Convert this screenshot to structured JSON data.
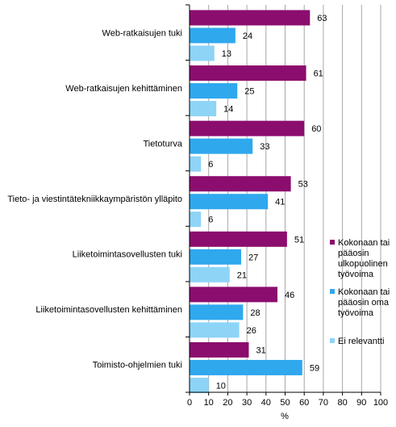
{
  "chart_data": {
    "type": "bar",
    "orientation": "horizontal",
    "categories": [
      "Web-ratkaisujen tuki",
      "Web-ratkaisujen kehittäminen",
      "Tietoturva",
      "Tieto- ja viestintätekniikkaympäristön ylläpito",
      "Liiketoimintasovellusten tuki",
      "Liiketoimintasovellusten kehittäminen",
      "Toimisto-ohjelmien tuki"
    ],
    "series": [
      {
        "name": "Kokonaan tai pääosin ulkopuolinen työvoima",
        "legend_lines": [
          "Kokonaan tai",
          "pääosin",
          "ulkopuolinen",
          "työvoima"
        ],
        "color": "#8b0d6e",
        "values": [
          63,
          61,
          60,
          53,
          51,
          46,
          31
        ]
      },
      {
        "name": "Kokonaan tai pääosin oma työvoima",
        "legend_lines": [
          "Kokonaan tai",
          "pääosin oma",
          "työvoima"
        ],
        "color": "#2fa8ee",
        "values": [
          24,
          25,
          33,
          41,
          27,
          28,
          59
        ]
      },
      {
        "name": "Ei relevantti",
        "legend_lines": [
          "Ei relevantti"
        ],
        "color": "#8ed4f7",
        "values": [
          13,
          14,
          6,
          6,
          21,
          26,
          10
        ]
      }
    ],
    "xlabel": "%",
    "xlim": [
      0,
      100
    ],
    "xticks": [
      "0",
      "10",
      "20",
      "30",
      "40",
      "50",
      "60",
      "70",
      "80",
      "90",
      "100"
    ],
    "grid": true,
    "data_labels": true,
    "legend_position": "right"
  }
}
